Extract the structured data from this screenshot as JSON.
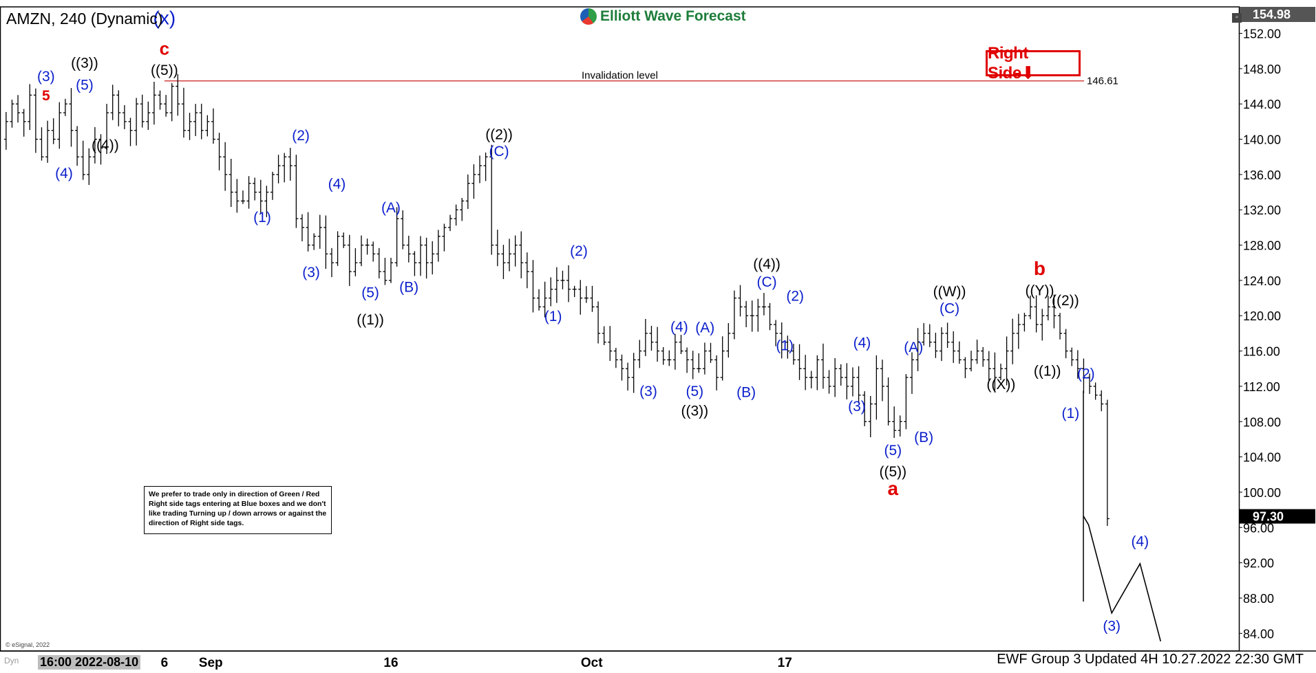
{
  "header": {
    "title": "AMZN, 240 (Dynamic)",
    "brand": "Elliott Wave Forecast",
    "right_side_tag": "Right Side⬇",
    "note": "We prefer to trade only in direction of Green / Red Right side tags entering at Blue boxes and we don't like trading Turning up / down arrows or against the direction of Right side tags.",
    "invalidation_label": "Invalidation level",
    "invalidation_value": "146.61",
    "current_price": "97.30",
    "top_price": "154.98",
    "footer": "EWF Group 3 Updated 4H 10.27.2022 22:30 GMT",
    "time_box": "16:00 2022-08-10",
    "copyright": "© eSignal, 2022",
    "dyn": "Dyn"
  },
  "colors": {
    "blue": "#0a1ecc",
    "red": "#e00000",
    "black": "#000000",
    "green": "#1e7d3a"
  },
  "chart_data": {
    "type": "line",
    "title": "AMZN, 240 (Dynamic)",
    "ylim": [
      82,
      155
    ],
    "y_ticks": [
      84,
      88,
      92,
      96,
      100,
      104,
      108,
      112,
      116,
      120,
      124,
      128,
      132,
      136,
      140,
      144,
      148,
      152
    ],
    "x_ticks": [
      {
        "bar": 80,
        "label": "Sep"
      },
      {
        "bar": 150,
        "label": "16"
      },
      {
        "bar": 228,
        "label": "Oct"
      },
      {
        "bar": 303,
        "label": "17"
      },
      {
        "bar": 62,
        "label": "6"
      }
    ],
    "grid": false,
    "series": [
      {
        "values": [
          140,
          142,
          144,
          143,
          142,
          145,
          140,
          138,
          141,
          140,
          143,
          144,
          141,
          138,
          136,
          138,
          140,
          139,
          143,
          145,
          143,
          142,
          141,
          144,
          142,
          143,
          145,
          144,
          143,
          146,
          144,
          141,
          142,
          143,
          141,
          142,
          140,
          138,
          136,
          134,
          133,
          133,
          135,
          134,
          133,
          134,
          136,
          137,
          138,
          137,
          131,
          130,
          128,
          129,
          130,
          127,
          126,
          129,
          128,
          125,
          126,
          128,
          128,
          127,
          125,
          124,
          126,
          131,
          128,
          127,
          126,
          128,
          126,
          127,
          129,
          130,
          131,
          132,
          133,
          135,
          136,
          137,
          138,
          128,
          127,
          126,
          127,
          128,
          126,
          125,
          122,
          121,
          122,
          123,
          124,
          124,
          123,
          123,
          122,
          122,
          121,
          118,
          117,
          116,
          115,
          114,
          113,
          115,
          116,
          118,
          117,
          116,
          115,
          115,
          117,
          116,
          115,
          114,
          114,
          116,
          115,
          113,
          116,
          118,
          122,
          121,
          120,
          120,
          121,
          121,
          119,
          118,
          117,
          116,
          115,
          114,
          113,
          113,
          115,
          113,
          112,
          114,
          113,
          112,
          113,
          111,
          108,
          110,
          114,
          112,
          108,
          107,
          108,
          113,
          115,
          117,
          118,
          117,
          116,
          118,
          117,
          116,
          115,
          114,
          115,
          116,
          115,
          114,
          113,
          114,
          116,
          118,
          119,
          120,
          121,
          119,
          120,
          121,
          120,
          118,
          116,
          115,
          114,
          113,
          112,
          111,
          110,
          97
        ]
      }
    ]
  },
  "labels": [
    {
      "t": "(x)",
      "bar": 62,
      "y": 153.0,
      "c": "blue",
      "s": 28
    },
    {
      "t": "c",
      "bar": 62,
      "y": 149.6,
      "c": "red",
      "s": 26
    },
    {
      "t": "((5))",
      "bar": 62,
      "y": 147.3,
      "c": "black",
      "s": 21
    },
    {
      "t": "(3)",
      "bar": 16,
      "y": 146.6,
      "c": "blue",
      "s": 21
    },
    {
      "t": "5",
      "bar": 16,
      "y": 144.4,
      "c": "red",
      "s": 21
    },
    {
      "t": "((3))",
      "bar": 31,
      "y": 148.1,
      "c": "black",
      "s": 21
    },
    {
      "t": "(5)",
      "bar": 31,
      "y": 145.6,
      "c": "blue",
      "s": 21
    },
    {
      "t": "(4)",
      "bar": 23,
      "y": 135.6,
      "c": "blue",
      "s": 21
    },
    {
      "t": "((4))",
      "bar": 39,
      "y": 138.8,
      "c": "black",
      "s": 21
    },
    {
      "t": "(2)",
      "bar": 115,
      "y": 139.9,
      "c": "blue",
      "s": 21
    },
    {
      "t": "(1)",
      "bar": 100,
      "y": 130.6,
      "c": "blue",
      "s": 21
    },
    {
      "t": "(3)",
      "bar": 119,
      "y": 124.4,
      "c": "blue",
      "s": 21
    },
    {
      "t": "(4)",
      "bar": 129,
      "y": 134.4,
      "c": "blue",
      "s": 21
    },
    {
      "t": "(5)",
      "bar": 142,
      "y": 122.1,
      "c": "blue",
      "s": 21
    },
    {
      "t": "((1))",
      "bar": 142,
      "y": 119.0,
      "c": "black",
      "s": 21
    },
    {
      "t": "(A)",
      "bar": 150,
      "y": 131.7,
      "c": "blue",
      "s": 21
    },
    {
      "t": "(B)",
      "bar": 157,
      "y": 122.7,
      "c": "blue",
      "s": 21
    },
    {
      "t": "((2))",
      "bar": 192,
      "y": 140.0,
      "c": "black",
      "s": 21
    },
    {
      "t": "(C)",
      "bar": 192,
      "y": 138.1,
      "c": "blue",
      "s": 21
    },
    {
      "t": "(2)",
      "bar": 223,
      "y": 126.8,
      "c": "blue",
      "s": 21
    },
    {
      "t": "(1)",
      "bar": 213,
      "y": 119.4,
      "c": "blue",
      "s": 21
    },
    {
      "t": "(3)",
      "bar": 250,
      "y": 110.9,
      "c": "blue",
      "s": 21
    },
    {
      "t": "(4)",
      "bar": 262,
      "y": 118.2,
      "c": "blue",
      "s": 21
    },
    {
      "t": "(A)",
      "bar": 272,
      "y": 118.1,
      "c": "blue",
      "s": 21
    },
    {
      "t": "(5)",
      "bar": 268,
      "y": 110.9,
      "c": "blue",
      "s": 21
    },
    {
      "t": "((3))",
      "bar": 268,
      "y": 108.7,
      "c": "black",
      "s": 21
    },
    {
      "t": "(B)",
      "bar": 288,
      "y": 110.8,
      "c": "blue",
      "s": 21
    },
    {
      "t": "((4))",
      "bar": 296,
      "y": 125.3,
      "c": "black",
      "s": 21
    },
    {
      "t": "(C)",
      "bar": 296,
      "y": 123.3,
      "c": "blue",
      "s": 21
    },
    {
      "t": "(2)",
      "bar": 307,
      "y": 121.7,
      "c": "blue",
      "s": 21
    },
    {
      "t": "(1)",
      "bar": 303,
      "y": 116.1,
      "c": "blue",
      "s": 21
    },
    {
      "t": "(4)",
      "bar": 333,
      "y": 116.4,
      "c": "blue",
      "s": 21
    },
    {
      "t": "(3)",
      "bar": 331,
      "y": 109.2,
      "c": "blue",
      "s": 21
    },
    {
      "t": "(A)",
      "bar": 353,
      "y": 115.9,
      "c": "blue",
      "s": 21
    },
    {
      "t": "(B)",
      "bar": 357,
      "y": 105.7,
      "c": "blue",
      "s": 21
    },
    {
      "t": "(5)",
      "bar": 345,
      "y": 104.2,
      "c": "blue",
      "s": 21
    },
    {
      "t": "((5))",
      "bar": 345,
      "y": 101.8,
      "c": "black",
      "s": 21
    },
    {
      "t": "a",
      "bar": 345,
      "y": 99.7,
      "c": "red",
      "s": 28
    },
    {
      "t": "((W))",
      "bar": 367,
      "y": 122.2,
      "c": "black",
      "s": 21
    },
    {
      "t": "(C)",
      "bar": 367,
      "y": 120.3,
      "c": "blue",
      "s": 21
    },
    {
      "t": "((X))",
      "bar": 387,
      "y": 111.7,
      "c": "black",
      "s": 21
    },
    {
      "t": "b",
      "bar": 402,
      "y": 124.6,
      "c": "red",
      "s": 28
    },
    {
      "t": "((Y))",
      "bar": 402,
      "y": 122.3,
      "c": "black",
      "s": 21
    },
    {
      "t": "((2))",
      "bar": 412,
      "y": 121.2,
      "c": "black",
      "s": 21
    },
    {
      "t": "((1))",
      "bar": 405,
      "y": 113.2,
      "c": "black",
      "s": 21
    },
    {
      "t": "(2)",
      "bar": 420,
      "y": 112.9,
      "c": "blue",
      "s": 21
    },
    {
      "t": "(1)",
      "bar": 414,
      "y": 108.4,
      "c": "blue",
      "s": 21
    },
    {
      "t": "(4)",
      "bar": 441,
      "y": 93.9,
      "c": "blue",
      "s": 21
    },
    {
      "t": "(3)",
      "bar": 430,
      "y": 84.3,
      "c": "blue",
      "s": 21
    }
  ],
  "projection": [
    {
      "bar": 419,
      "y": 97.3
    },
    {
      "bar": 421,
      "y": 96.3
    },
    {
      "bar": 430,
      "y": 86.3
    },
    {
      "bar": 441,
      "y": 91.9
    },
    {
      "bar": 449,
      "y": 83.1
    }
  ],
  "initial_drop": [
    {
      "bar": 419,
      "y": 111.5
    },
    {
      "bar": 419,
      "y": 87.6
    }
  ]
}
